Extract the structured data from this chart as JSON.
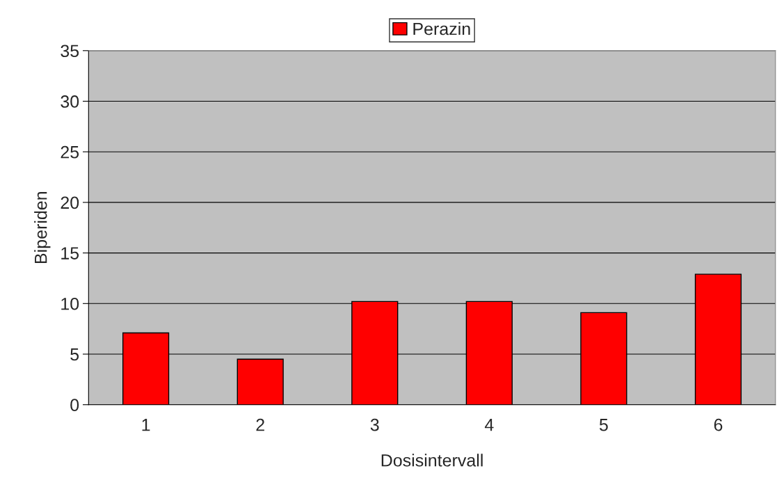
{
  "chart_data": {
    "type": "bar",
    "xlabel": "Dosisintervall",
    "ylabel": "Biperiden",
    "categories": [
      "1",
      "2",
      "3",
      "4",
      "5",
      "6"
    ],
    "series": [
      {
        "name": "Perazin",
        "color": "#ff0000",
        "values": [
          7.1,
          4.5,
          10.2,
          10.2,
          9.1,
          12.9
        ]
      }
    ],
    "ylim": [
      0,
      35
    ],
    "yticks": [
      0,
      5,
      10,
      15,
      20,
      25,
      30,
      35
    ],
    "grid": "y",
    "legend": "top"
  }
}
